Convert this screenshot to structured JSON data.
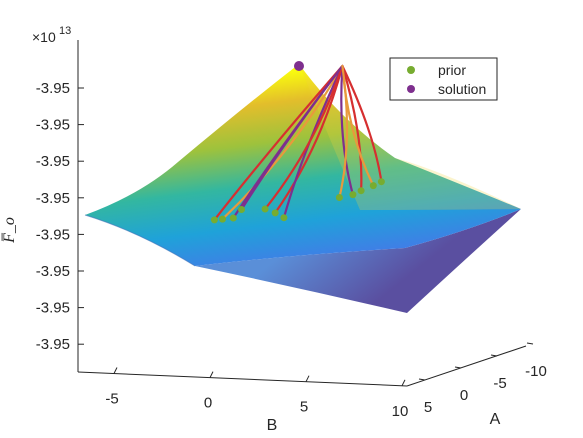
{
  "chart_data": {
    "type": "surface3d",
    "zlabel": "F̅_o",
    "exponent_base": "×10",
    "exponent_power": "13",
    "xlabel": "B",
    "ylabel": "A",
    "b_ticks": [
      "-5",
      "0",
      "5",
      "10"
    ],
    "a_ticks": [
      "5",
      "0",
      "-5",
      "-10"
    ],
    "z_ticks": [
      "-3.95",
      "-3.95",
      "-3.95",
      "-3.95",
      "-3.95",
      "-3.95",
      "-3.95",
      "-3.95"
    ],
    "legend": [
      {
        "label": "prior",
        "color": "#77ac30"
      },
      {
        "label": "solution",
        "color": "#7e2f8e"
      }
    ],
    "colormap": "parula",
    "legend_position": "top-right",
    "optimum": {
      "B": 4,
      "A": -8
    },
    "trajectories": [
      {
        "prior": {
          "B": -1.2,
          "A": 0.5
        },
        "color": "#d62f30"
      },
      {
        "prior": {
          "B": -0.6,
          "A": 0.5
        },
        "color": "#e89a3c"
      },
      {
        "prior": {
          "B": 0.2,
          "A": 0.5
        },
        "color": "#7e2f8e"
      },
      {
        "prior": {
          "B": 3.2,
          "A": 0.3
        },
        "color": "#d62f30"
      },
      {
        "prior": {
          "B": 4.6,
          "A": 1.8
        },
        "color": "#7e2f8e"
      },
      {
        "prior": {
          "B": 7.8,
          "A": -3.2
        },
        "color": "#d62f30"
      },
      {
        "prior": {
          "B": 8.2,
          "A": -4.2
        },
        "color": "#e89a3c"
      },
      {
        "prior": {
          "B": 8.4,
          "A": -5.0
        },
        "color": "#d62f30"
      },
      {
        "prior": {
          "B": 7.6,
          "A": -2.4
        },
        "color": "#7e2f8e"
      },
      {
        "prior": {
          "B": 1.8,
          "A": -1.0
        },
        "color": "#d62f30"
      },
      {
        "prior": {
          "B": -0.2,
          "A": -1.5
        },
        "color": "#7e2f8e"
      },
      {
        "prior": {
          "B": 6.8,
          "A": -2.0
        },
        "color": "#e89a3c"
      }
    ]
  }
}
